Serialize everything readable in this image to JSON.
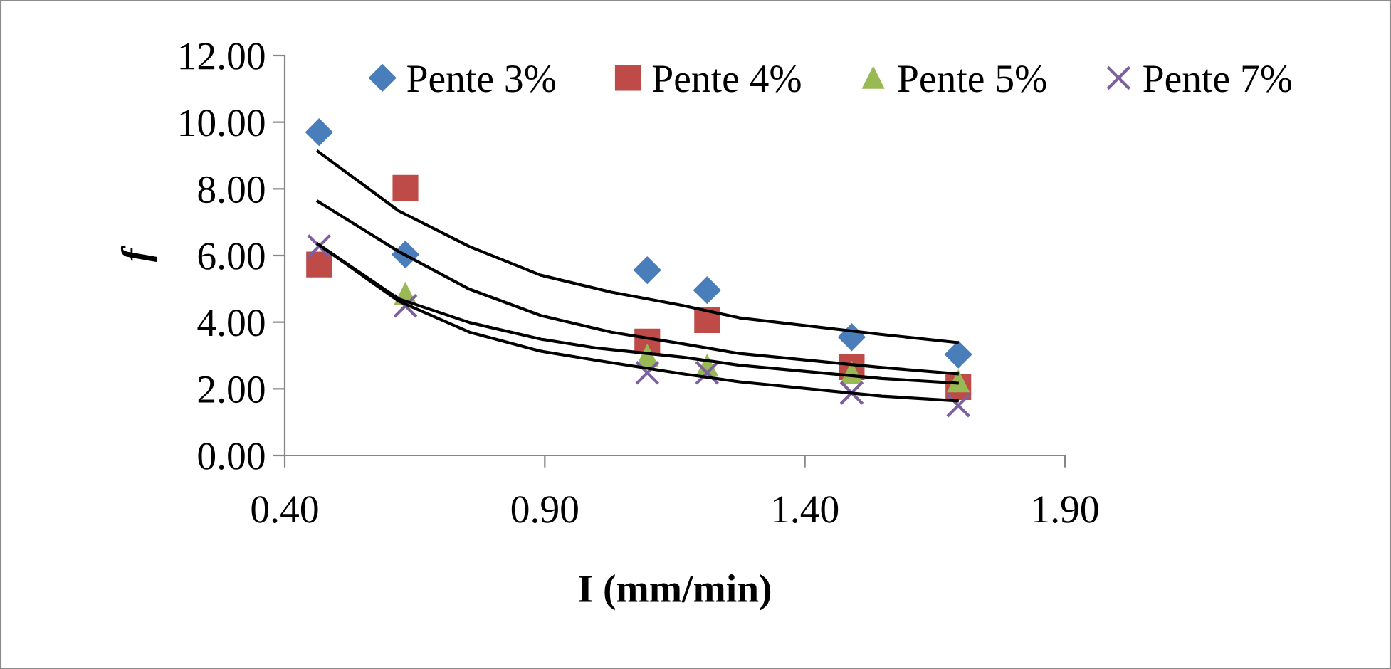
{
  "chart_data": {
    "type": "scatter",
    "xlabel": "I (mm/min)",
    "ylabel": "f",
    "xlim": [
      0.4,
      1.9
    ],
    "xticks": [
      {
        "value": 0.4,
        "label": "0.40"
      },
      {
        "value": 0.9,
        "label": "0.90"
      },
      {
        "value": 1.4,
        "label": "1.40"
      },
      {
        "value": 1.9,
        "label": "1.90"
      }
    ],
    "ylim": [
      0,
      12
    ],
    "yticks": [
      {
        "value": 0,
        "label": "0.00"
      },
      {
        "value": 2,
        "label": "2.00"
      },
      {
        "value": 4,
        "label": "4.00"
      },
      {
        "value": 6,
        "label": "6.00"
      },
      {
        "value": 8,
        "label": "8.00"
      },
      {
        "value": 10,
        "label": "10.00"
      },
      {
        "value": 12,
        "label": "12.00"
      }
    ],
    "grid": false,
    "legend": "top",
    "x": [
      0.466,
      0.632,
      1.097,
      1.212,
      1.49,
      1.695
    ],
    "series": [
      {
        "name": "Pente 3%",
        "color": "#4a7ebb",
        "marker": "diamond",
        "values": [
          9.7,
          6.03,
          5.56,
          4.96,
          3.55,
          3.03
        ]
      },
      {
        "name": "Pente 4%",
        "color": "#be4b48",
        "marker": "square",
        "values": [
          5.73,
          8.03,
          3.42,
          4.06,
          2.65,
          2.05
        ]
      },
      {
        "name": "Pente 5%",
        "color": "#98b954",
        "marker": "triangle",
        "values": [
          null,
          4.85,
          2.99,
          2.69,
          2.48,
          2.22
        ]
      },
      {
        "name": "Pente 7%",
        "color": "#7d60a0",
        "marker": "cross",
        "values": [
          6.28,
          4.49,
          2.48,
          2.48,
          1.88,
          1.5
        ]
      },
      {
        "type": "line",
        "color": "#000000",
        "x": [
          0.464,
          0.619,
          0.755,
          0.892,
          1.028,
          1.165,
          1.274,
          1.548,
          1.693
        ],
        "values": [
          9.12,
          7.34,
          6.27,
          5.41,
          4.9,
          4.5,
          4.13,
          3.63,
          3.39
        ]
      },
      {
        "type": "line",
        "color": "#000000",
        "x": [
          0.464,
          0.619,
          0.755,
          0.892,
          1.028,
          1.165,
          1.274,
          1.548,
          1.693
        ],
        "values": [
          7.62,
          6.12,
          4.99,
          4.2,
          3.7,
          3.35,
          3.06,
          2.64,
          2.45
        ]
      },
      {
        "type": "line",
        "color": "#000000",
        "x": [
          0.464,
          0.619,
          0.755,
          0.892,
          1.001,
          1.165,
          1.274,
          1.548,
          1.693
        ],
        "values": [
          6.34,
          4.7,
          3.99,
          3.49,
          3.22,
          2.95,
          2.71,
          2.31,
          2.17
        ]
      },
      {
        "type": "line",
        "color": "#000000",
        "x": [
          0.464,
          0.619,
          0.755,
          0.892,
          1.001,
          1.165,
          1.274,
          1.548,
          1.693
        ],
        "values": [
          6.34,
          4.63,
          3.7,
          3.13,
          2.85,
          2.45,
          2.21,
          1.78,
          1.64
        ]
      }
    ]
  }
}
